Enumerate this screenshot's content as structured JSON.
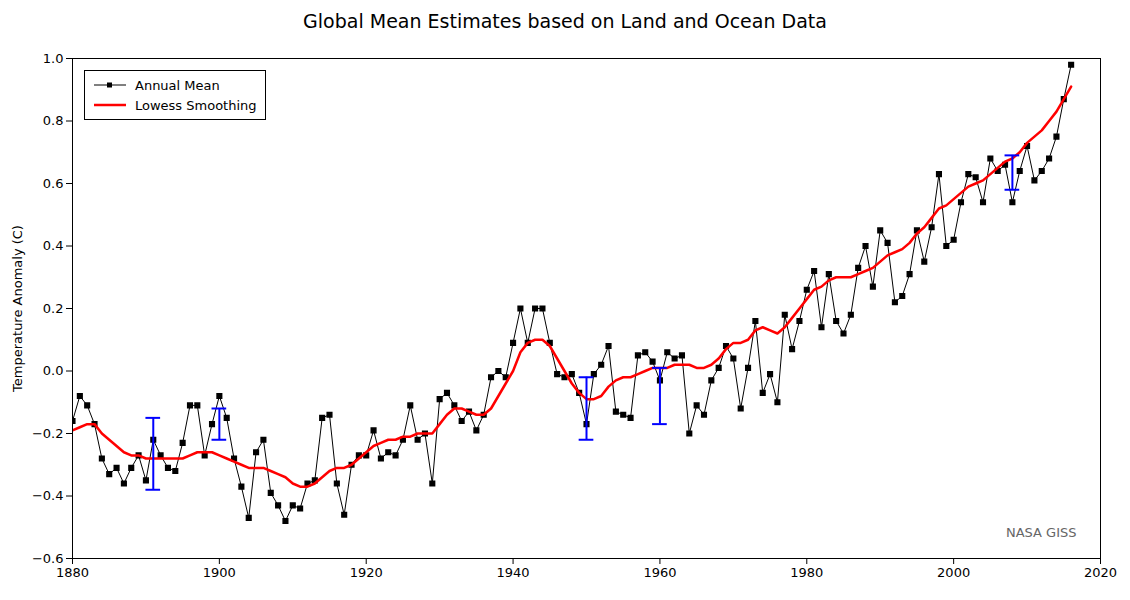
{
  "chart_data": {
    "type": "line",
    "title": "Global Mean Estimates based on Land and Ocean Data",
    "ylabel": "Temperature Anomaly (C)",
    "x": [
      1880,
      1881,
      1882,
      1883,
      1884,
      1885,
      1886,
      1887,
      1888,
      1889,
      1890,
      1891,
      1892,
      1893,
      1894,
      1895,
      1896,
      1897,
      1898,
      1899,
      1900,
      1901,
      1902,
      1903,
      1904,
      1905,
      1906,
      1907,
      1908,
      1909,
      1910,
      1911,
      1912,
      1913,
      1914,
      1915,
      1916,
      1917,
      1918,
      1919,
      1920,
      1921,
      1922,
      1923,
      1924,
      1925,
      1926,
      1927,
      1928,
      1929,
      1930,
      1931,
      1932,
      1933,
      1934,
      1935,
      1936,
      1937,
      1938,
      1939,
      1940,
      1941,
      1942,
      1943,
      1944,
      1945,
      1946,
      1947,
      1948,
      1949,
      1950,
      1951,
      1952,
      1953,
      1954,
      1955,
      1956,
      1957,
      1958,
      1959,
      1960,
      1961,
      1962,
      1963,
      1964,
      1965,
      1966,
      1967,
      1968,
      1969,
      1970,
      1971,
      1972,
      1973,
      1974,
      1975,
      1976,
      1977,
      1978,
      1979,
      1980,
      1981,
      1982,
      1983,
      1984,
      1985,
      1986,
      1987,
      1988,
      1989,
      1990,
      1991,
      1992,
      1993,
      1994,
      1995,
      1996,
      1997,
      1998,
      1999,
      2000,
      2001,
      2002,
      2003,
      2004,
      2005,
      2006,
      2007,
      2008,
      2009,
      2010,
      2011,
      2012,
      2013,
      2014,
      2015,
      2016
    ],
    "series": [
      {
        "name": "Annual Mean",
        "color": "#000000",
        "marker": "square",
        "line_style": "solid",
        "values": [
          -0.16,
          -0.08,
          -0.11,
          -0.17,
          -0.28,
          -0.33,
          -0.31,
          -0.36,
          -0.31,
          -0.27,
          -0.35,
          -0.22,
          -0.27,
          -0.31,
          -0.32,
          -0.23,
          -0.11,
          -0.11,
          -0.27,
          -0.17,
          -0.08,
          -0.15,
          -0.28,
          -0.37,
          -0.47,
          -0.26,
          -0.22,
          -0.39,
          -0.43,
          -0.48,
          -0.43,
          -0.44,
          -0.36,
          -0.35,
          -0.15,
          -0.14,
          -0.36,
          -0.46,
          -0.3,
          -0.27,
          -0.27,
          -0.19,
          -0.28,
          -0.26,
          -0.27,
          -0.22,
          -0.11,
          -0.22,
          -0.2,
          -0.36,
          -0.09,
          -0.07,
          -0.11,
          -0.16,
          -0.13,
          -0.19,
          -0.14,
          -0.02,
          -0.0,
          -0.02,
          0.09,
          0.2,
          0.09,
          0.2,
          0.2,
          0.09,
          -0.01,
          -0.02,
          -0.01,
          -0.07,
          -0.17,
          -0.01,
          0.02,
          0.08,
          -0.13,
          -0.14,
          -0.15,
          0.05,
          0.06,
          0.03,
          -0.03,
          0.06,
          0.04,
          0.05,
          -0.2,
          -0.11,
          -0.14,
          -0.03,
          0.01,
          0.08,
          0.04,
          -0.12,
          0.01,
          0.16,
          -0.07,
          -0.01,
          -0.1,
          0.18,
          0.07,
          0.16,
          0.26,
          0.32,
          0.14,
          0.31,
          0.16,
          0.12,
          0.18,
          0.33,
          0.4,
          0.27,
          0.45,
          0.41,
          0.22,
          0.24,
          0.31,
          0.45,
          0.35,
          0.46,
          0.63,
          0.4,
          0.42,
          0.54,
          0.63,
          0.62,
          0.54,
          0.68,
          0.64,
          0.66,
          0.54,
          0.64,
          0.72,
          0.61,
          0.64,
          0.68,
          0.75,
          0.87,
          0.98
        ]
      },
      {
        "name": "Lowess Smoothing",
        "color": "#ff0000",
        "line_style": "solid",
        "values": [
          -0.19,
          -0.18,
          -0.17,
          -0.17,
          -0.2,
          -0.22,
          -0.24,
          -0.26,
          -0.27,
          -0.27,
          -0.28,
          -0.28,
          -0.28,
          -0.28,
          -0.28,
          -0.28,
          -0.27,
          -0.26,
          -0.26,
          -0.26,
          -0.27,
          -0.28,
          -0.29,
          -0.3,
          -0.31,
          -0.31,
          -0.31,
          -0.32,
          -0.33,
          -0.34,
          -0.36,
          -0.37,
          -0.37,
          -0.36,
          -0.34,
          -0.32,
          -0.31,
          -0.31,
          -0.3,
          -0.28,
          -0.26,
          -0.24,
          -0.23,
          -0.22,
          -0.22,
          -0.21,
          -0.21,
          -0.2,
          -0.2,
          -0.2,
          -0.17,
          -0.14,
          -0.12,
          -0.12,
          -0.13,
          -0.14,
          -0.14,
          -0.12,
          -0.08,
          -0.04,
          0.0,
          0.06,
          0.09,
          0.1,
          0.1,
          0.08,
          0.04,
          0.0,
          -0.04,
          -0.07,
          -0.09,
          -0.09,
          -0.08,
          -0.05,
          -0.03,
          -0.02,
          -0.02,
          -0.01,
          0.0,
          0.01,
          0.01,
          0.01,
          0.02,
          0.02,
          0.02,
          0.01,
          0.01,
          0.02,
          0.04,
          0.07,
          0.09,
          0.09,
          0.1,
          0.13,
          0.14,
          0.13,
          0.12,
          0.14,
          0.17,
          0.2,
          0.23,
          0.26,
          0.27,
          0.29,
          0.3,
          0.3,
          0.3,
          0.31,
          0.32,
          0.33,
          0.35,
          0.37,
          0.38,
          0.39,
          0.41,
          0.44,
          0.46,
          0.49,
          0.52,
          0.53,
          0.55,
          0.57,
          0.59,
          0.6,
          0.61,
          0.63,
          0.65,
          0.67,
          0.68,
          0.7,
          0.73,
          0.75,
          0.77,
          0.8,
          0.83,
          0.87,
          0.91
        ]
      }
    ],
    "error_bars": {
      "color": "#0000ff",
      "values": [
        {
          "x": 1891,
          "lower": -0.38,
          "upper": -0.15
        },
        {
          "x": 1900,
          "lower": -0.22,
          "upper": -0.12
        },
        {
          "x": 1950,
          "lower": -0.22,
          "upper": -0.02
        },
        {
          "x": 1960,
          "lower": -0.17,
          "upper": 0.01
        },
        {
          "x": 2008,
          "lower": 0.58,
          "upper": 0.69
        }
      ]
    },
    "annotations": [
      {
        "text": "NASA GISS",
        "color": "#666666"
      }
    ],
    "xlim": [
      1880,
      2020
    ],
    "ylim": [
      -0.6,
      1.0
    ],
    "xticks": [
      1880,
      1900,
      1920,
      1940,
      1960,
      1980,
      2000,
      2020
    ],
    "yticks": [
      {
        "value": -0.6,
        "label": "−0.6"
      },
      {
        "value": -0.4,
        "label": "−0.4"
      },
      {
        "value": -0.2,
        "label": "−0.2"
      },
      {
        "value": 0.0,
        "label": "0.0"
      },
      0.2,
      0.4,
      0.6,
      0.8,
      {
        "value": 1.0,
        "label": "1.0"
      }
    ],
    "grid": false,
    "legend": "upper left"
  }
}
